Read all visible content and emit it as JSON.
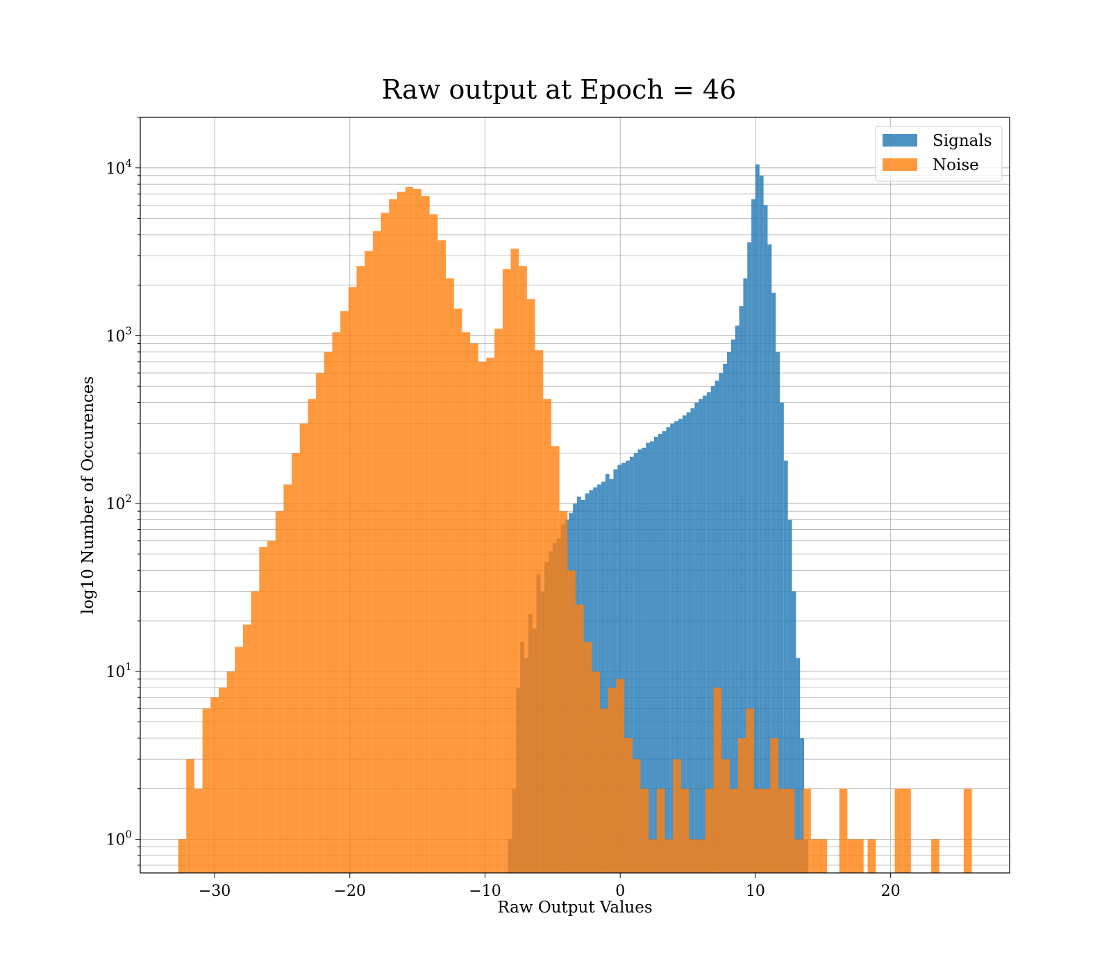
{
  "chart_data": {
    "type": "histogram",
    "title": "Raw output at Epoch = 46",
    "xlabel": "Raw Output Values",
    "ylabel": "log10 Number of Occurences",
    "xlim": [
      -35.5,
      28.8
    ],
    "ylim": [
      0.63,
      20000
    ],
    "yscale": "log",
    "x_ticks": [
      -30,
      -20,
      -10,
      0,
      10,
      20
    ],
    "x_tick_labels": [
      "−30",
      "−20",
      "−10",
      "0",
      "10",
      "20"
    ],
    "y_ticks": [
      {
        "value": 1,
        "base": "10",
        "exp": "0"
      },
      {
        "value": 10,
        "base": "10",
        "exp": "1"
      },
      {
        "value": 100,
        "base": "10",
        "exp": "2"
      },
      {
        "value": 1000,
        "base": "10",
        "exp": "3"
      },
      {
        "value": 10000,
        "base": "10",
        "exp": "4"
      }
    ],
    "grid": "on (major and minor)",
    "legend": {
      "position": "upper right",
      "items": [
        {
          "label": "Signals",
          "color": "#1f77b4"
        },
        {
          "label": "Noise",
          "color": "#ff7f0e"
        }
      ]
    },
    "series": [
      {
        "name": "Signals",
        "color": "#1f77b4",
        "alpha": 0.8,
        "bins": [
          [
            -8.3,
            -8.0,
            1
          ],
          [
            -8.0,
            -7.7,
            2
          ],
          [
            -7.7,
            -7.4,
            8
          ],
          [
            -7.4,
            -7.1,
            15
          ],
          [
            -7.1,
            -6.8,
            12
          ],
          [
            -6.8,
            -6.5,
            22
          ],
          [
            -6.5,
            -6.2,
            18
          ],
          [
            -6.2,
            -5.9,
            38
          ],
          [
            -5.9,
            -5.6,
            30
          ],
          [
            -5.6,
            -5.3,
            45
          ],
          [
            -5.3,
            -5.0,
            52
          ],
          [
            -5.0,
            -4.7,
            58
          ],
          [
            -4.7,
            -4.4,
            62
          ],
          [
            -4.4,
            -4.1,
            75
          ],
          [
            -4.1,
            -3.8,
            80
          ],
          [
            -3.8,
            -3.5,
            88
          ],
          [
            -3.5,
            -3.2,
            100
          ],
          [
            -3.2,
            -2.9,
            110
          ],
          [
            -2.9,
            -2.6,
            105
          ],
          [
            -2.6,
            -2.3,
            115
          ],
          [
            -2.3,
            -2.0,
            120
          ],
          [
            -2.0,
            -1.7,
            125
          ],
          [
            -1.7,
            -1.4,
            130
          ],
          [
            -1.4,
            -1.1,
            135
          ],
          [
            -1.1,
            -0.8,
            150
          ],
          [
            -0.8,
            -0.5,
            140
          ],
          [
            -0.5,
            -0.2,
            160
          ],
          [
            -0.2,
            0.1,
            170
          ],
          [
            0.1,
            0.4,
            175
          ],
          [
            0.4,
            0.7,
            180
          ],
          [
            0.7,
            1.0,
            190
          ],
          [
            1.0,
            1.3,
            200
          ],
          [
            1.3,
            1.6,
            210
          ],
          [
            1.6,
            1.9,
            215
          ],
          [
            1.9,
            2.2,
            230
          ],
          [
            2.2,
            2.5,
            235
          ],
          [
            2.5,
            2.8,
            250
          ],
          [
            2.8,
            3.1,
            260
          ],
          [
            3.1,
            3.4,
            270
          ],
          [
            3.4,
            3.7,
            285
          ],
          [
            3.7,
            4.0,
            300
          ],
          [
            4.0,
            4.3,
            310
          ],
          [
            4.3,
            4.6,
            320
          ],
          [
            4.6,
            4.9,
            335
          ],
          [
            4.9,
            5.2,
            350
          ],
          [
            5.2,
            5.5,
            370
          ],
          [
            5.5,
            5.8,
            400
          ],
          [
            5.8,
            6.1,
            420
          ],
          [
            6.1,
            6.4,
            440
          ],
          [
            6.4,
            6.7,
            460
          ],
          [
            6.7,
            7.0,
            500
          ],
          [
            7.0,
            7.3,
            540
          ],
          [
            7.3,
            7.6,
            600
          ],
          [
            7.6,
            7.9,
            680
          ],
          [
            7.9,
            8.2,
            800
          ],
          [
            8.2,
            8.5,
            950
          ],
          [
            8.5,
            8.8,
            1150
          ],
          [
            8.8,
            9.1,
            1500
          ],
          [
            9.1,
            9.4,
            2200
          ],
          [
            9.4,
            9.7,
            3600
          ],
          [
            9.7,
            10.0,
            6500
          ],
          [
            10.0,
            10.3,
            10500
          ],
          [
            10.3,
            10.6,
            9000
          ],
          [
            10.6,
            10.9,
            6000
          ],
          [
            10.9,
            11.2,
            3500
          ],
          [
            11.2,
            11.5,
            1800
          ],
          [
            11.5,
            11.8,
            800
          ],
          [
            11.8,
            12.1,
            400
          ],
          [
            12.1,
            12.4,
            180
          ],
          [
            12.4,
            12.7,
            80
          ],
          [
            12.7,
            13.0,
            30
          ],
          [
            13.0,
            13.3,
            12
          ],
          [
            13.3,
            13.6,
            4
          ],
          [
            13.6,
            13.9,
            1
          ]
        ]
      },
      {
        "name": "Noise",
        "color": "#ff7f0e",
        "alpha": 0.8,
        "bins": [
          [
            -32.7,
            -32.1,
            1
          ],
          [
            -32.1,
            -31.5,
            3
          ],
          [
            -31.5,
            -30.9,
            2
          ],
          [
            -30.9,
            -30.3,
            6
          ],
          [
            -30.3,
            -29.7,
            7
          ],
          [
            -29.7,
            -29.1,
            8
          ],
          [
            -29.1,
            -28.5,
            10
          ],
          [
            -28.5,
            -27.9,
            14
          ],
          [
            -27.9,
            -27.3,
            19
          ],
          [
            -27.3,
            -26.7,
            30
          ],
          [
            -26.7,
            -26.1,
            55
          ],
          [
            -26.1,
            -25.5,
            60
          ],
          [
            -25.5,
            -24.9,
            90
          ],
          [
            -24.9,
            -24.3,
            130
          ],
          [
            -24.3,
            -23.7,
            200
          ],
          [
            -23.7,
            -23.1,
            300
          ],
          [
            -23.1,
            -22.5,
            420
          ],
          [
            -22.5,
            -21.9,
            600
          ],
          [
            -21.9,
            -21.3,
            800
          ],
          [
            -21.3,
            -20.7,
            1050
          ],
          [
            -20.7,
            -20.1,
            1400
          ],
          [
            -20.1,
            -19.5,
            1950
          ],
          [
            -19.5,
            -18.9,
            2600
          ],
          [
            -18.9,
            -18.3,
            3200
          ],
          [
            -18.3,
            -17.7,
            4200
          ],
          [
            -17.7,
            -17.1,
            5400
          ],
          [
            -17.1,
            -16.5,
            6500
          ],
          [
            -16.5,
            -15.9,
            7200
          ],
          [
            -15.9,
            -15.3,
            7700
          ],
          [
            -15.3,
            -14.7,
            7500
          ],
          [
            -14.7,
            -14.1,
            6800
          ],
          [
            -14.1,
            -13.5,
            5300
          ],
          [
            -13.5,
            -12.9,
            3700
          ],
          [
            -12.9,
            -12.3,
            2200
          ],
          [
            -12.3,
            -11.7,
            1450
          ],
          [
            -11.7,
            -11.1,
            1050
          ],
          [
            -11.1,
            -10.5,
            900
          ],
          [
            -10.5,
            -9.9,
            700
          ],
          [
            -9.9,
            -9.3,
            740
          ],
          [
            -9.3,
            -8.7,
            1100
          ],
          [
            -8.7,
            -8.1,
            2500
          ],
          [
            -8.1,
            -7.5,
            3300
          ],
          [
            -7.5,
            -6.9,
            2600
          ],
          [
            -6.9,
            -6.3,
            1650
          ],
          [
            -6.3,
            -5.7,
            820
          ],
          [
            -5.7,
            -5.1,
            420
          ],
          [
            -5.1,
            -4.5,
            220
          ],
          [
            -4.5,
            -3.9,
            90
          ],
          [
            -3.9,
            -3.3,
            40
          ],
          [
            -3.3,
            -2.7,
            25
          ],
          [
            -2.7,
            -2.1,
            15
          ],
          [
            -2.1,
            -1.5,
            10
          ],
          [
            -1.5,
            -0.9,
            6
          ],
          [
            -0.9,
            -0.3,
            8
          ],
          [
            -0.3,
            0.3,
            9
          ],
          [
            0.3,
            0.9,
            4
          ],
          [
            0.9,
            1.5,
            3
          ],
          [
            1.5,
            2.1,
            2
          ],
          [
            2.1,
            2.7,
            1
          ],
          [
            2.7,
            3.3,
            2
          ],
          [
            3.3,
            3.9,
            1
          ],
          [
            3.9,
            4.5,
            3
          ],
          [
            4.5,
            5.1,
            2
          ],
          [
            5.1,
            5.7,
            1
          ],
          [
            5.7,
            6.3,
            1
          ],
          [
            6.3,
            6.9,
            2
          ],
          [
            6.9,
            7.5,
            8
          ],
          [
            7.5,
            8.1,
            3
          ],
          [
            8.1,
            8.7,
            2
          ],
          [
            8.7,
            9.3,
            4
          ],
          [
            9.3,
            9.9,
            6
          ],
          [
            9.9,
            10.5,
            2
          ],
          [
            10.5,
            11.1,
            2
          ],
          [
            11.1,
            11.7,
            4
          ],
          [
            11.7,
            12.3,
            2
          ],
          [
            12.3,
            12.9,
            2
          ],
          [
            12.9,
            13.5,
            1
          ],
          [
            13.5,
            14.1,
            2
          ],
          [
            14.1,
            14.7,
            1
          ],
          [
            14.7,
            15.3,
            1
          ],
          [
            16.2,
            16.8,
            2
          ],
          [
            16.8,
            17.4,
            1
          ],
          [
            17.4,
            18.0,
            1
          ],
          [
            18.3,
            18.9,
            1
          ],
          [
            20.3,
            20.9,
            2
          ],
          [
            20.9,
            21.5,
            2
          ],
          [
            23.0,
            23.6,
            1
          ],
          [
            25.4,
            26.0,
            2
          ]
        ]
      }
    ]
  }
}
